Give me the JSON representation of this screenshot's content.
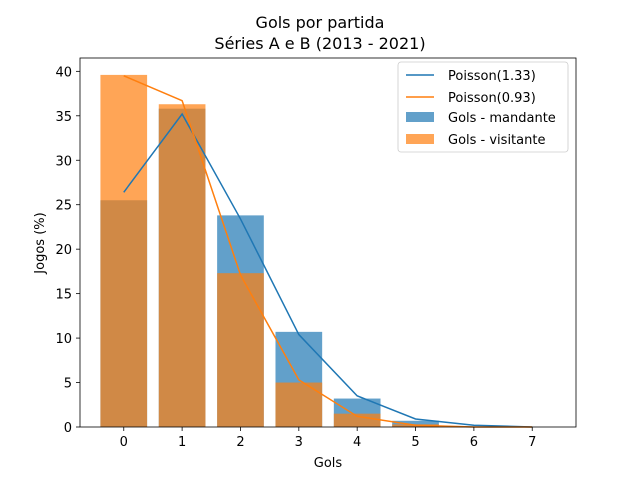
{
  "chart_data": {
    "type": "bar",
    "title": "Gols por partida",
    "subtitle": "Séries A e B (2013 - 2021)",
    "xlabel": "Gols",
    "ylabel": "Jogos (%)",
    "xlim": [
      -0.75,
      7.75
    ],
    "ylim": [
      0,
      41.5
    ],
    "xticks": [
      0,
      1,
      2,
      3,
      4,
      5,
      6,
      7
    ],
    "yticks": [
      0,
      5,
      10,
      15,
      20,
      25,
      30,
      35,
      40
    ],
    "grid": false,
    "legend_position": "top-right",
    "bar_series": [
      {
        "name": "Gols - mandante",
        "color": "#1f77b4",
        "alpha": 0.7,
        "x": [
          0,
          1,
          2,
          3,
          4,
          5
        ],
        "values": [
          25.5,
          35.8,
          23.8,
          10.7,
          3.2,
          0.7
        ]
      },
      {
        "name": "Gols - visitante",
        "color": "#ff7f0e",
        "alpha": 0.7,
        "x": [
          0,
          1,
          2,
          3,
          4,
          5
        ],
        "values": [
          39.6,
          36.3,
          17.3,
          5.0,
          1.5,
          0.3
        ]
      }
    ],
    "line_series": [
      {
        "name": "Poisson(1.33)",
        "color": "#1f77b4",
        "x": [
          0,
          1,
          2,
          3,
          4,
          5,
          6,
          7
        ],
        "values": [
          26.4,
          35.2,
          23.4,
          10.4,
          3.5,
          0.9,
          0.2,
          0.0
        ]
      },
      {
        "name": "Poisson(0.93)",
        "color": "#ff7f0e",
        "x": [
          0,
          1,
          2,
          3,
          4,
          5,
          6,
          7
        ],
        "values": [
          39.5,
          36.7,
          17.1,
          5.3,
          1.2,
          0.2,
          0.0,
          0.0
        ]
      }
    ]
  }
}
